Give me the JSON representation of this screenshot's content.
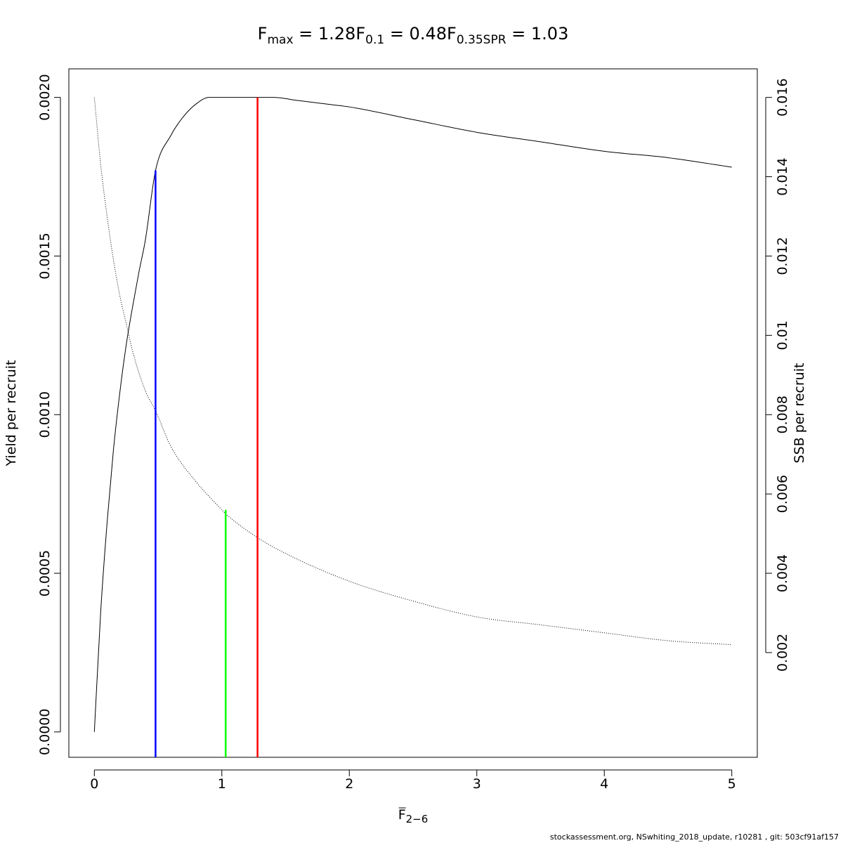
{
  "title": {
    "fmax": {
      "main": "F",
      "sub": "max",
      "value": " = 1.28"
    },
    "f01": {
      "main": "F",
      "sub": "0.1",
      "value": " = 0.48"
    },
    "f035": {
      "main": "F",
      "sub": "0.35SPR",
      "value": " = 1.03"
    }
  },
  "footer": "stockassessment.org, NSwhiting_2018_update, r10281 , git: 503cf91af157",
  "chart_data": {
    "type": "line",
    "xlabel": {
      "main": "F",
      "sub": "2−6",
      "overline": true
    },
    "ylabel_left": "Yield per recruit",
    "ylabel_right": "SSB per recruit",
    "xlim": [
      -0.2,
      5.2
    ],
    "ylim_left": [
      -8e-05,
      0.00209
    ],
    "ylim_right": [
      -0.00064,
      0.01672
    ],
    "x_ticks": [
      0,
      1,
      2,
      3,
      4,
      5
    ],
    "x_tick_labels": [
      "0",
      "1",
      "2",
      "3",
      "4",
      "5"
    ],
    "y_left_ticks": [
      0,
      0.0005,
      0.001,
      0.0015,
      0.002
    ],
    "y_left_tick_labels": [
      "0.0000",
      "0.0005",
      "0.0010",
      "0.0015",
      "0.0020"
    ],
    "y_right_ticks": [
      0.002,
      0.004,
      0.006,
      0.008,
      0.01,
      0.012,
      0.014,
      0.016
    ],
    "y_right_tick_labels": [
      "0.002",
      "0.004",
      "0.006",
      "0.008",
      "0.01",
      "0.012",
      "0.014",
      "0.016"
    ],
    "series": [
      {
        "axis": "left",
        "style": "solid",
        "color": "#000000",
        "x": [
          0,
          0.05,
          0.1,
          0.15,
          0.2,
          0.25,
          0.3,
          0.35,
          0.4,
          0.48,
          0.6,
          0.7,
          0.8,
          0.9,
          1.0,
          1.1,
          1.2,
          1.28,
          1.4,
          1.6,
          1.8,
          2.0,
          2.5,
          3.0,
          3.5,
          4.0,
          4.5,
          5.0
        ],
        "y": [
          0,
          0.00038,
          0.00066,
          0.00089,
          0.00107,
          0.00122,
          0.00134,
          0.00145,
          0.00155,
          0.00177,
          0.00188,
          0.00194,
          0.00198,
          0.002,
          0.002,
          0.002,
          0.002,
          0.002,
          0.002,
          0.00199,
          0.00198,
          0.00197,
          0.00193,
          0.00189,
          0.00186,
          0.00183,
          0.00181,
          0.00178
        ]
      },
      {
        "axis": "right",
        "style": "dotted",
        "color": "#000000",
        "x": [
          0,
          0.05,
          0.1,
          0.15,
          0.2,
          0.25,
          0.3,
          0.4,
          0.48,
          0.6,
          0.8,
          1.0,
          1.03,
          1.28,
          1.5,
          2.0,
          2.5,
          3.0,
          3.5,
          4.0,
          4.5,
          5.0
        ],
        "y": [
          0.016,
          0.0143,
          0.013,
          0.0119,
          0.011,
          0.0103,
          0.0096,
          0.0086,
          0.0081,
          0.0072,
          0.0063,
          0.0056,
          0.0055,
          0.0049,
          0.0045,
          0.0038,
          0.0033,
          0.0029,
          0.0027,
          0.0025,
          0.0023,
          0.0022
        ]
      }
    ],
    "reference_lines": [
      {
        "name": "F0.1",
        "x": 0.48,
        "y": 0.00177,
        "color": "#0000ff"
      },
      {
        "name": "F0.35SPR",
        "x": 1.03,
        "y": 0.0007,
        "color": "#00ff00"
      },
      {
        "name": "Fmax",
        "x": 1.28,
        "y": 0.002,
        "color": "#ff0000"
      }
    ],
    "grid": false,
    "legend": "none"
  }
}
